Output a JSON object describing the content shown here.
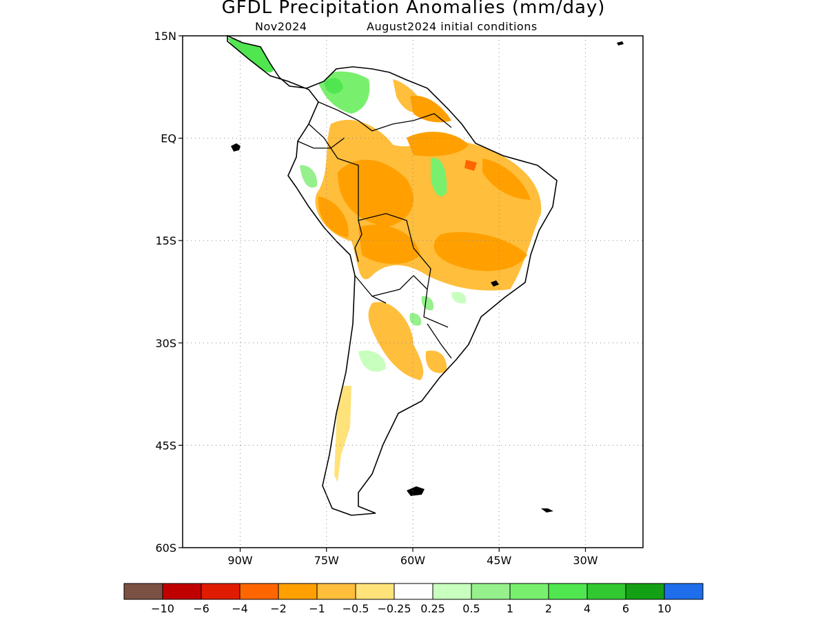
{
  "title": "GFDL Precipitation Anomalies (mm/day)",
  "subtitle_left": "Nov2024",
  "subtitle_right": "August2024 initial conditions",
  "axes": {
    "lon_ticks": [
      "90W",
      "75W",
      "60W",
      "45W",
      "30W"
    ],
    "lat_ticks": [
      "15N",
      "EQ",
      "15S",
      "30S",
      "45S",
      "60S"
    ],
    "lon_range": [
      -100,
      -20
    ],
    "lat_range": [
      -60,
      15
    ],
    "grid": "dotted"
  },
  "colorbar": {
    "colors": [
      "#7b5144",
      "#c00000",
      "#e01c00",
      "#ff6600",
      "#ffa000",
      "#ffbe3c",
      "#ffe27a",
      "#ffffff",
      "#c8ffbe",
      "#96f08c",
      "#78f06e",
      "#50e650",
      "#32c832",
      "#14a014",
      "#1e6eeb"
    ],
    "labels": [
      "−10",
      "−6",
      "−4",
      "−2",
      "−1",
      "−0.5",
      "−0.25",
      "0.25",
      "0.5",
      "1",
      "2",
      "4",
      "6",
      "10"
    ]
  }
}
